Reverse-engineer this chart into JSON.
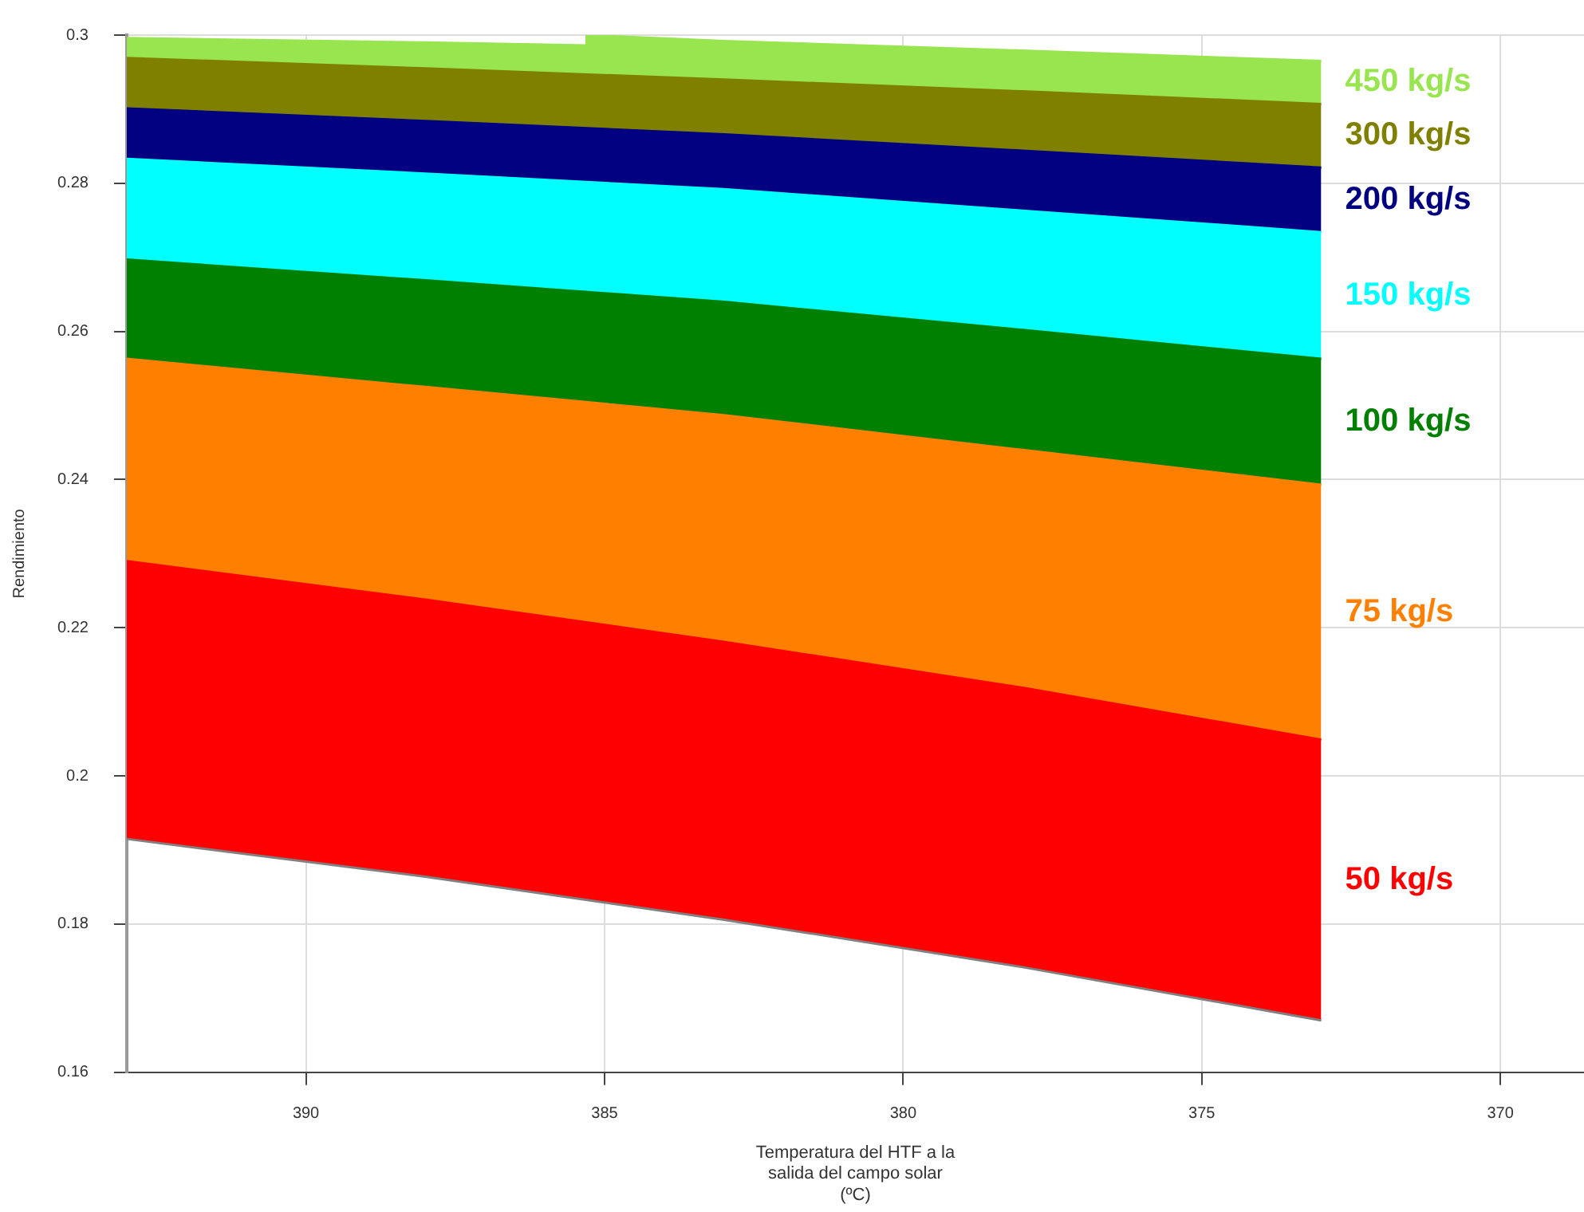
{
  "chart_data": {
    "type": "area",
    "xlabel": "Temperatura del HTF a la salida del campo solar (ºC)",
    "ylabel": "Rendimiento",
    "xlim": [
      393,
      368.6
    ],
    "xticks": [
      390,
      385,
      380,
      375,
      370
    ],
    "ylim": [
      0.16,
      0.3
    ],
    "yticks": [
      0.16,
      0.18,
      0.2,
      0.22,
      0.24,
      0.26,
      0.28,
      0.3
    ],
    "grid": true,
    "legend": false,
    "x": [
      393,
      388,
      383,
      378,
      373
    ],
    "series": [
      {
        "type": "line",
        "color": "#808080",
        "values": [
          0.1915,
          0.1864,
          0.1806,
          0.1742,
          0.167
        ]
      },
      {
        "name": "50 kg/s",
        "color": "#ff0000",
        "values": [
          0.229,
          0.2238,
          0.2181,
          0.2119,
          0.2049
        ]
      },
      {
        "name": "75 kg/s",
        "color": "#ff8000",
        "values": [
          0.2563,
          0.2525,
          0.2487,
          0.244,
          0.2393
        ]
      },
      {
        "name": "100 kg/s",
        "color": "#008000",
        "values": [
          0.2697,
          0.2669,
          0.264,
          0.2602,
          0.2563
        ]
      },
      {
        "name": "150 kg/s",
        "color": "#00ffff",
        "values": [
          0.2833,
          0.2813,
          0.2792,
          0.2763,
          0.2734
        ]
      },
      {
        "name": "200 kg/s",
        "color": "#000080",
        "values": [
          0.2901,
          0.2884,
          0.2866,
          0.2844,
          0.2821
        ]
      },
      {
        "name": "300 kg/s",
        "color": "#808000",
        "values": [
          0.2969,
          0.2955,
          0.294,
          0.2924,
          0.2907
        ]
      },
      {
        "name": "450 kg/s",
        "color": "#99e550",
        "x": [
          393,
          388,
          385.3,
          385.3,
          383,
          378,
          373
        ],
        "values": [
          0.2996,
          0.299,
          0.2986,
          0.3,
          0.2992,
          0.2979,
          0.2965
        ]
      }
    ]
  }
}
